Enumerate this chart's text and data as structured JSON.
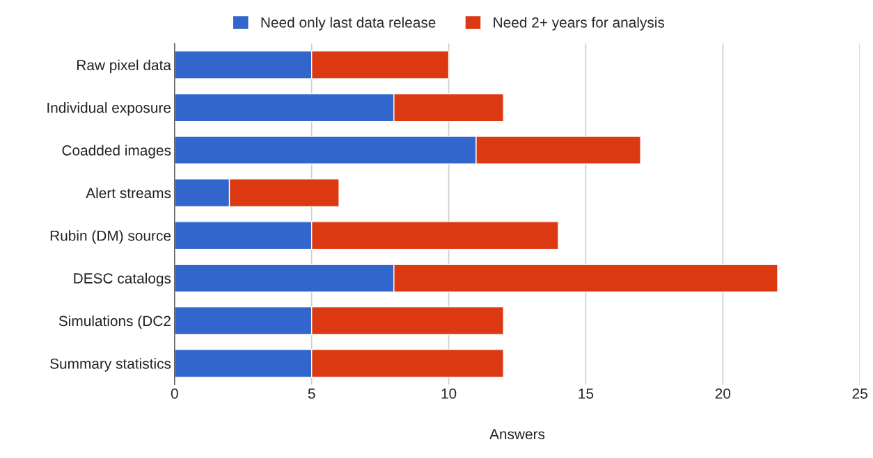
{
  "chart_data": {
    "type": "bar",
    "orientation": "horizontal",
    "stacked": true,
    "xlabel": "Answers",
    "categories": [
      "Raw pixel data",
      "Individual exposure",
      "Coadded images",
      "Alert streams",
      "Rubin (DM) source",
      "DESC catalogs",
      "Simulations (DC2",
      "Summary statistics"
    ],
    "series": [
      {
        "name": "Need only last data release",
        "color": "#3366cc",
        "values": [
          5,
          8,
          11,
          2,
          5,
          8,
          5,
          5
        ]
      },
      {
        "name": "Need 2+ years for analysis",
        "color": "#dc3912",
        "values": [
          5,
          4,
          6,
          4,
          9,
          14,
          7,
          7
        ]
      }
    ],
    "xlim": [
      0,
      25
    ],
    "xticks": [
      0,
      5,
      10,
      15,
      20,
      25
    ],
    "grid": "x",
    "legend": "top"
  }
}
